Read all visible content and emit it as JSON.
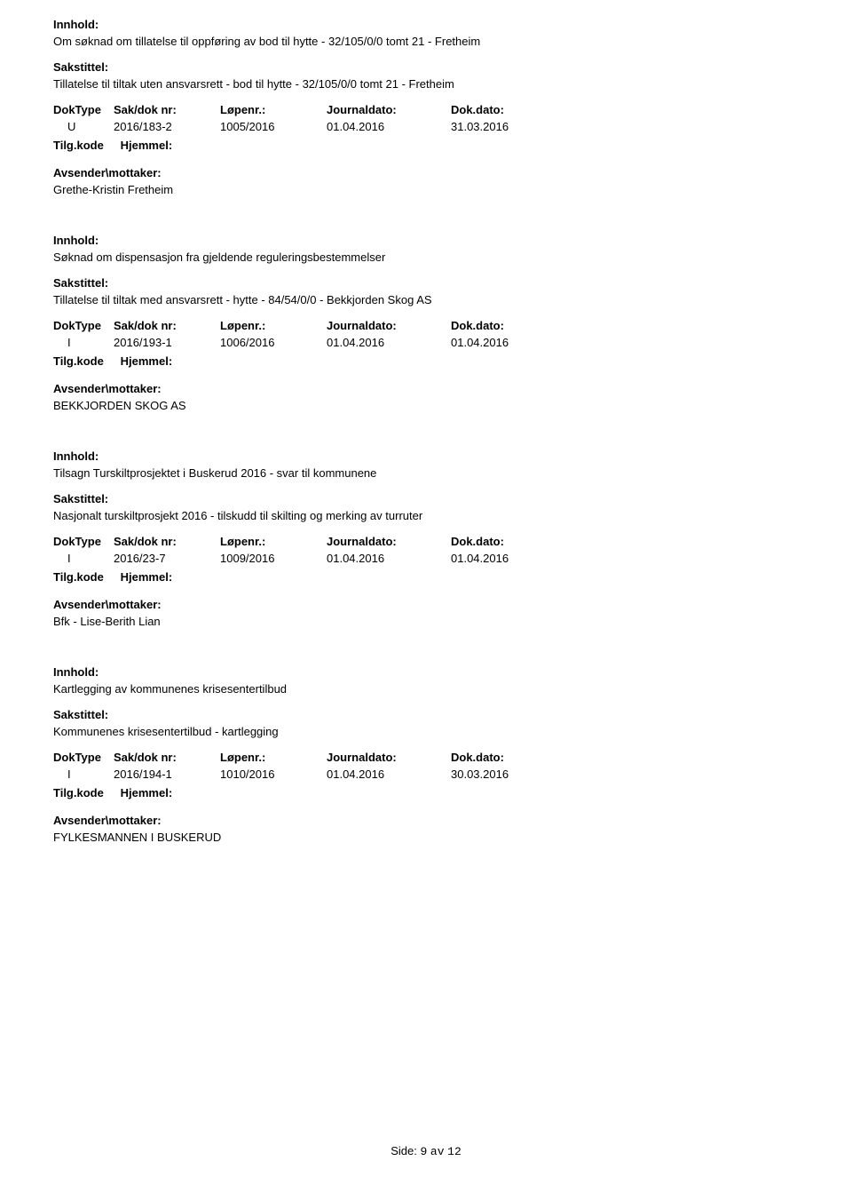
{
  "labels": {
    "innhold": "Innhold:",
    "sakstittel": "Sakstittel:",
    "doktype": "DokType",
    "sakdoknr": "Sak/dok nr:",
    "lopenr": "Løpenr.:",
    "journaldato": "Journaldato:",
    "dokdato": "Dok.dato:",
    "tilgkode": "Tilg.kode",
    "hjemmel": "Hjemmel:",
    "avsender": "Avsender\\mottaker:"
  },
  "entries": [
    {
      "innhold": "Om søknad om tillatelse til oppføring av bod til hytte - 32/105/0/0 tomt 21 - Fretheim",
      "sakstittel": "Tillatelse til tiltak uten ansvarsrett - bod til hytte - 32/105/0/0 tomt 21 - Fretheim",
      "doktype": "U",
      "sakdoknr": "2016/183-2",
      "lopenr": "1005/2016",
      "journaldato": "01.04.2016",
      "dokdato": "31.03.2016",
      "avsender": "Grethe-Kristin Fretheim"
    },
    {
      "innhold": "Søknad om dispensasjon fra gjeldende reguleringsbestemmelser",
      "sakstittel": "Tillatelse til tiltak med ansvarsrett - hytte - 84/54/0/0 - Bekkjorden Skog AS",
      "doktype": "I",
      "sakdoknr": "2016/193-1",
      "lopenr": "1006/2016",
      "journaldato": "01.04.2016",
      "dokdato": "01.04.2016",
      "avsender": "BEKKJORDEN SKOG AS"
    },
    {
      "innhold": "Tilsagn Turskiltprosjektet i Buskerud 2016 - svar til kommunene",
      "sakstittel": "Nasjonalt turskiltprosjekt 2016 - tilskudd til skilting og merking av turruter",
      "doktype": "I",
      "sakdoknr": "2016/23-7",
      "lopenr": "1009/2016",
      "journaldato": "01.04.2016",
      "dokdato": "01.04.2016",
      "avsender": "Bfk - Lise-Berith Lian"
    },
    {
      "innhold": "Kartlegging av kommunenes krisesentertilbud",
      "sakstittel": "Kommunenes krisesentertilbud - kartlegging",
      "doktype": "I",
      "sakdoknr": "2016/194-1",
      "lopenr": "1010/2016",
      "journaldato": "01.04.2016",
      "dokdato": "30.03.2016",
      "avsender": "FYLKESMANNEN I BUSKERUD"
    }
  ],
  "footer": {
    "side_label": "Side:",
    "page_current": "9",
    "page_sep": "av",
    "page_total": "12"
  }
}
